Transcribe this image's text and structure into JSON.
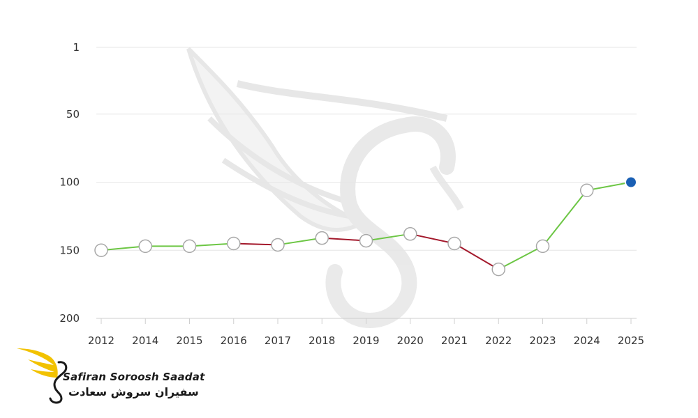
{
  "chart_data": {
    "type": "line",
    "title": "",
    "xlabel": "",
    "ylabel": "",
    "y_inverted": true,
    "ylim": [
      1,
      200
    ],
    "yticks": [
      1,
      50,
      100,
      150,
      200
    ],
    "grid": true,
    "categories": [
      "2012",
      "2014",
      "2015",
      "2016",
      "2017",
      "2018",
      "2019",
      "2020",
      "2021",
      "2022",
      "2023",
      "2024",
      "2025"
    ],
    "values": [
      150,
      147,
      147,
      145,
      146,
      141,
      143,
      138,
      145,
      164,
      147,
      106,
      100
    ],
    "colors": {
      "rising": "#6cc644",
      "falling": "#a3182b",
      "marker_fill": "#ffffff",
      "marker_stroke": "#a8a8a8",
      "highlight": "#1a5fb4",
      "grid": "#e6e6e6"
    }
  },
  "brand": {
    "name_en": "Safiran Soroosh Saadat",
    "name_fa": "سفیران سروش سعادت",
    "logo_icon": "wing-swan-logo-icon",
    "logo_color": "#f2c200"
  }
}
